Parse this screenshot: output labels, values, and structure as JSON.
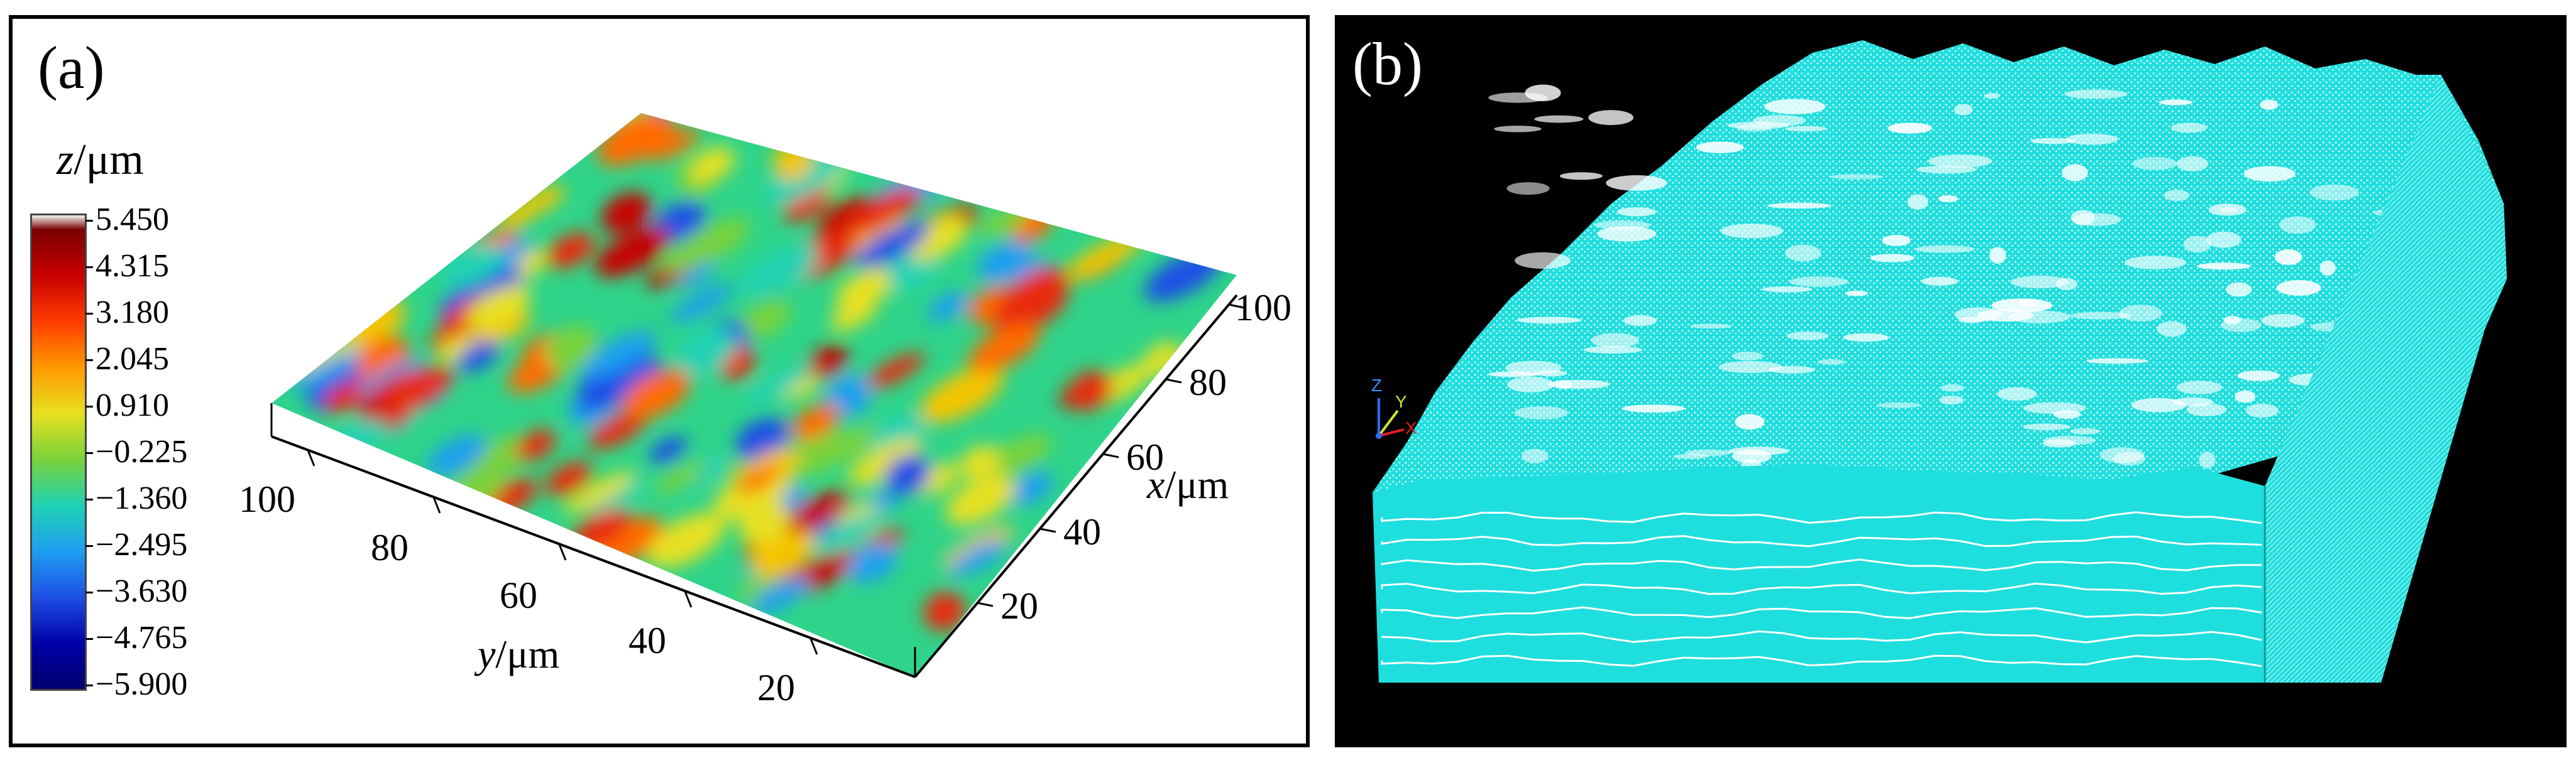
{
  "panel_a": {
    "label": "(a)",
    "colorbar": {
      "title_var": "z",
      "title_unit": "/μm",
      "ticks": [
        "5.450",
        "4.315",
        "3.180",
        "2.045",
        "0.910",
        "−0.225",
        "−1.360",
        "−2.495",
        "−3.630",
        "−4.765",
        "−5.900"
      ],
      "colors": [
        "#f4f4f4",
        "#7a0000",
        "#c80000",
        "#ff3c00",
        "#ff9900",
        "#e8e020",
        "#7ad23a",
        "#20d2b4",
        "#1e9ef0",
        "#1e50e6",
        "#0000a8",
        "#00006e"
      ]
    },
    "y_axis": {
      "var": "y",
      "unit": "/μm",
      "ticks": [
        "100",
        "80",
        "60",
        "40",
        "20"
      ]
    },
    "x_axis": {
      "var": "x",
      "unit": "/μm",
      "ticks": [
        "20",
        "40",
        "60",
        "80",
        "100"
      ]
    }
  },
  "panel_b": {
    "label": "(b)",
    "triad": {
      "z": "Z",
      "y": "Y",
      "x": "X"
    },
    "colors": {
      "background": "#000000",
      "mesh": "#1fdede",
      "line": "#ffffff"
    }
  }
}
